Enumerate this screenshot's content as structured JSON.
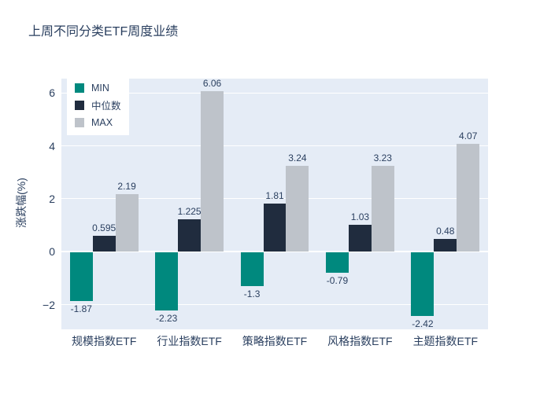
{
  "figure": {
    "title": "上周不同分类ETF周度业绩"
  },
  "chart_data": {
    "type": "bar",
    "title": "上周不同分类ETF周度业绩",
    "xlabel": "",
    "ylabel": "涨跌幅(%)",
    "categories": [
      "规模指数ETF",
      "行业指数ETF",
      "策略指数ETF",
      "风格指数ETF",
      "主题指数ETF"
    ],
    "series": [
      {
        "name": "MIN",
        "color": "#00897e",
        "values": [
          -1.87,
          -2.23,
          -1.3,
          -0.79,
          -2.42
        ],
        "labels": [
          "-1.87",
          "-2.23",
          "-1.3",
          "-0.79",
          "-2.42"
        ]
      },
      {
        "name": "中位数",
        "color": "#202c3e",
        "values": [
          0.595,
          1.225,
          1.81,
          1.03,
          0.48
        ],
        "labels": [
          "0.595",
          "1.225",
          "1.81",
          "1.03",
          "0.48"
        ]
      },
      {
        "name": "MAX",
        "color": "#bec3ca",
        "values": [
          2.19,
          6.06,
          3.24,
          3.23,
          4.07
        ],
        "labels": [
          "2.19",
          "6.06",
          "3.24",
          "3.23",
          "4.07"
        ]
      }
    ],
    "yticks": [
      {
        "v": 6,
        "label": "6"
      },
      {
        "v": 4,
        "label": "4"
      },
      {
        "v": 2,
        "label": "2"
      },
      {
        "v": 0,
        "label": "0"
      },
      {
        "v": -2,
        "label": "−2"
      }
    ],
    "ylim": [
      -2.93,
      6.54
    ],
    "grid": true,
    "legend_position": "top-left",
    "colors": {
      "page_bg": "#ffffff",
      "plot_bg": "#e5ecf6",
      "grid": "#ffffff",
      "text": "#2a3f5f"
    }
  }
}
